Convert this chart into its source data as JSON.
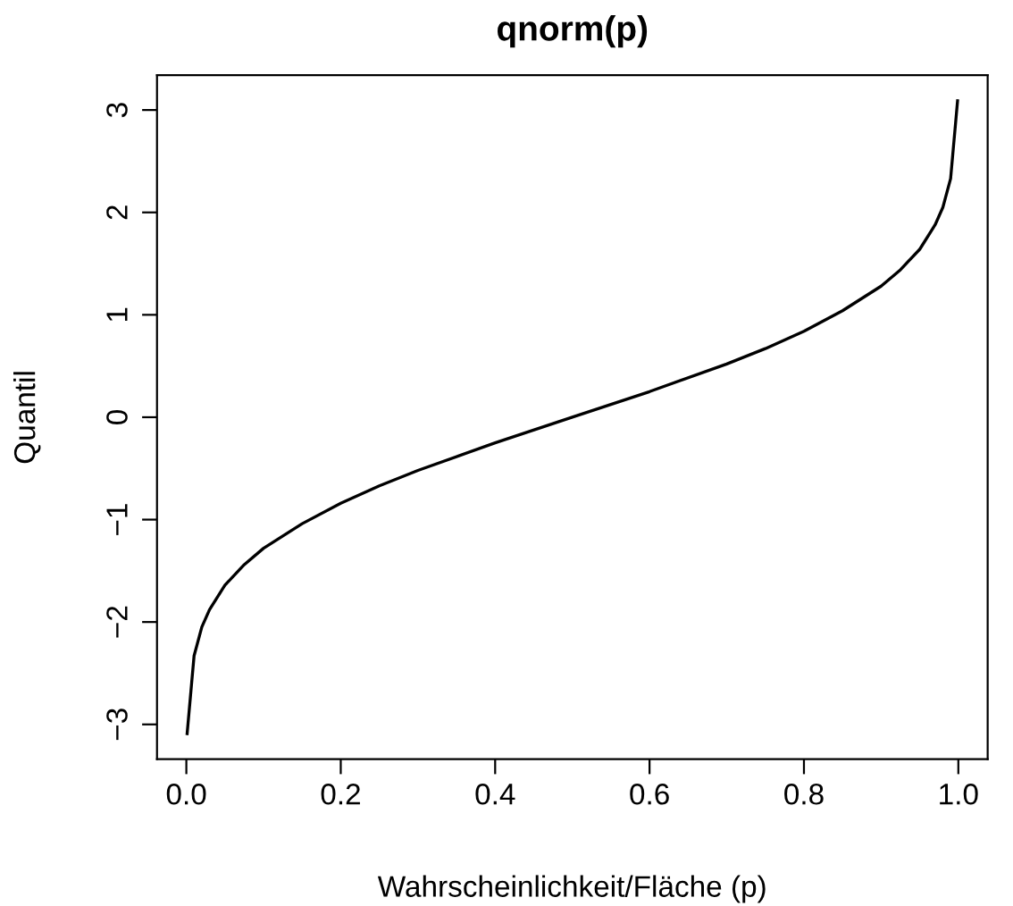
{
  "chart_data": {
    "type": "line",
    "title": "qnorm(p)",
    "xlabel": "Wahrscheinlichkeit/Fläche (p)",
    "ylabel": "Quantil",
    "x": [
      0.001,
      0.01,
      0.02,
      0.03,
      0.05,
      0.075,
      0.1,
      0.15,
      0.2,
      0.25,
      0.3,
      0.4,
      0.5,
      0.6,
      0.7,
      0.75,
      0.8,
      0.85,
      0.9,
      0.925,
      0.95,
      0.97,
      0.98,
      0.99,
      0.999
    ],
    "series": [
      {
        "color": "#000000",
        "values": [
          -3.09,
          -2.33,
          -2.05,
          -1.88,
          -1.64,
          -1.44,
          -1.28,
          -1.04,
          -0.84,
          -0.67,
          -0.52,
          -0.25,
          0,
          0.25,
          0.52,
          0.67,
          0.84,
          1.04,
          1.28,
          1.44,
          1.64,
          1.88,
          2.05,
          2.33,
          3.09
        ]
      }
    ],
    "xlim": [
      -0.038,
      1.038
    ],
    "ylim": [
      -3.34,
      3.34
    ],
    "xticks": [
      {
        "value": 0,
        "label": "0.0"
      },
      0.2,
      0.4,
      0.6,
      0.8,
      {
        "value": 1,
        "label": "1.0"
      }
    ],
    "yticks": [
      {
        "value": -3,
        "label": "−3"
      },
      {
        "value": -2,
        "label": "−2"
      },
      {
        "value": -1,
        "label": "−1"
      },
      0,
      1,
      2,
      3
    ],
    "grid": false,
    "legend": false,
    "line_style": "solid",
    "marker": "none"
  }
}
